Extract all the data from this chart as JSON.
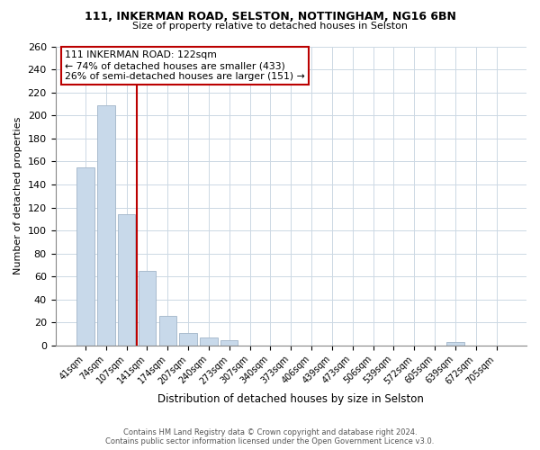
{
  "title_line1": "111, INKERMAN ROAD, SELSTON, NOTTINGHAM, NG16 6BN",
  "title_line2": "Size of property relative to detached houses in Selston",
  "xlabel": "Distribution of detached houses by size in Selston",
  "ylabel": "Number of detached properties",
  "bar_labels": [
    "41sqm",
    "74sqm",
    "107sqm",
    "141sqm",
    "174sqm",
    "207sqm",
    "240sqm",
    "273sqm",
    "307sqm",
    "340sqm",
    "373sqm",
    "406sqm",
    "439sqm",
    "473sqm",
    "506sqm",
    "539sqm",
    "572sqm",
    "605sqm",
    "639sqm",
    "672sqm",
    "705sqm"
  ],
  "bar_values": [
    155,
    209,
    114,
    65,
    26,
    11,
    7,
    5,
    0,
    0,
    0,
    0,
    0,
    0,
    0,
    0,
    0,
    0,
    3,
    0,
    0
  ],
  "bar_color": "#c8d9ea",
  "bar_edge_color": "#aabcce",
  "vline_color": "#bb0000",
  "ylim": [
    0,
    260
  ],
  "yticks": [
    0,
    20,
    40,
    60,
    80,
    100,
    120,
    140,
    160,
    180,
    200,
    220,
    240,
    260
  ],
  "annotation_title": "111 INKERMAN ROAD: 122sqm",
  "annotation_line1": "← 74% of detached houses are smaller (433)",
  "annotation_line2": "26% of semi-detached houses are larger (151) →",
  "annotation_box_color": "#ffffff",
  "annotation_box_edge": "#bb0000",
  "footer_line1": "Contains HM Land Registry data © Crown copyright and database right 2024.",
  "footer_line2": "Contains public sector information licensed under the Open Government Licence v3.0.",
  "bg_color": "#ffffff",
  "grid_color": "#ccd8e4"
}
